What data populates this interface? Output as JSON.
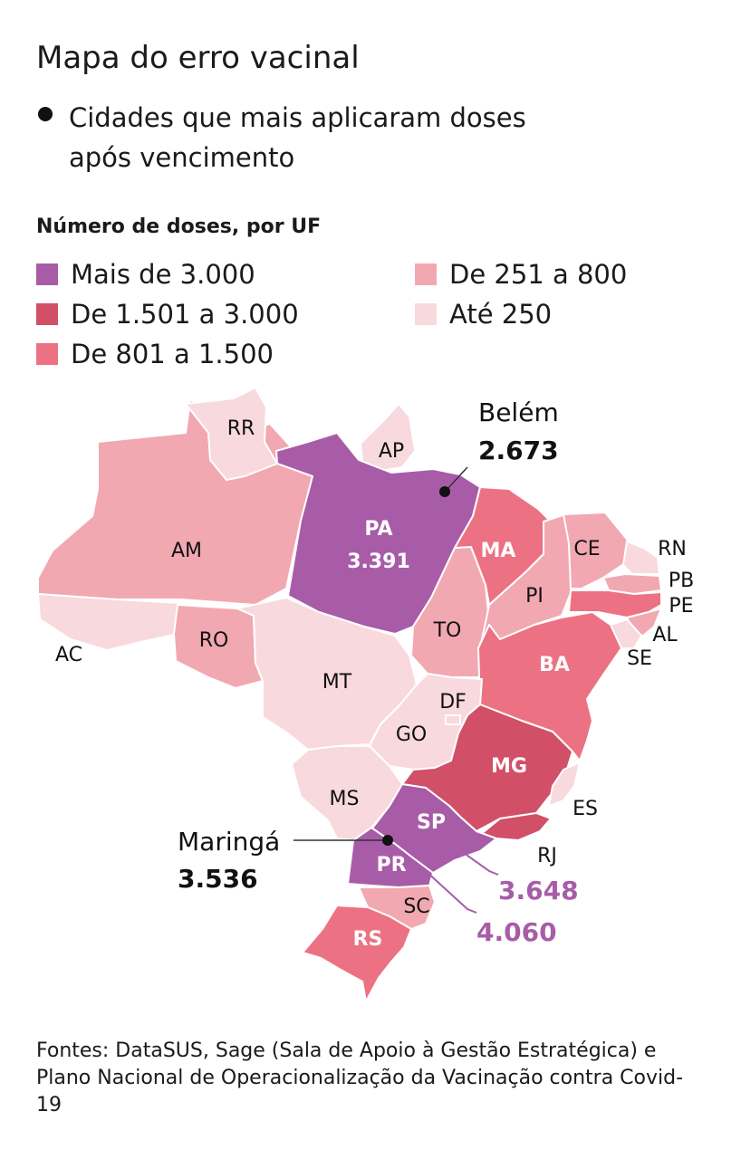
{
  "title": "Mapa do erro vacinal",
  "subtitle": "Cidades que mais aplicaram doses após vencimento",
  "legend": {
    "title": "Número de doses, por UF",
    "items": [
      {
        "label": "Mais de 3.000",
        "color": "#a85ca8"
      },
      {
        "label": "De 1.501 a 3.000",
        "color": "#d24f68"
      },
      {
        "label": "De 801 a 1.500",
        "color": "#ec7283"
      },
      {
        "label": "De 251 a 800",
        "color": "#f2a8b1"
      },
      {
        "label": "Até 250",
        "color": "#f8d9dd"
      }
    ]
  },
  "states": {
    "RR": "RR",
    "AP": "AP",
    "AM": "AM",
    "PA": "PA",
    "PA_value": "3.391",
    "MA": "MA",
    "CE": "CE",
    "RN": "RN",
    "PB": "PB",
    "PE": "PE",
    "AL": "AL",
    "SE": "SE",
    "PI": "PI",
    "TO": "TO",
    "BA": "BA",
    "AC": "AC",
    "RO": "RO",
    "MT": "MT",
    "DF": "DF",
    "GO": "GO",
    "MG": "MG",
    "ES": "ES",
    "MS": "MS",
    "SP": "SP",
    "RJ": "RJ",
    "PR": "PR",
    "SC": "SC",
    "RS": "RS"
  },
  "state_category": {
    "RR": "Até 250",
    "AP": "Até 250",
    "AM": "De 251 a 800",
    "PA": "Mais de 3.000",
    "MA": "De 801 a 1.500",
    "CE": "De 251 a 800",
    "RN": "Até 250",
    "PB": "De 251 a 800",
    "PE": "De 801 a 1.500",
    "AL": "De 251 a 800",
    "SE": "Até 250",
    "PI": "De 251 a 800",
    "TO": "De 251 a 800",
    "BA": "De 801 a 1.500",
    "AC": "Até 250",
    "RO": "De 251 a 800",
    "MT": "Até 250",
    "DF": "Até 250",
    "GO": "Até 250",
    "MG": "De 1.501 a 3.000",
    "ES": "Até 250",
    "MS": "Até 250",
    "SP": "Mais de 3.000",
    "RJ": "De 1.501 a 3.000",
    "PR": "Mais de 3.000",
    "SC": "De 251 a 800",
    "RS": "De 801 a 1.500"
  },
  "cities": {
    "belem": {
      "name": "Belém",
      "value": "2.673"
    },
    "maringa": {
      "name": "Maringá",
      "value": "3.536"
    }
  },
  "callouts": {
    "sp_value": "3.648",
    "pr_value": "4.060",
    "color": "#a85ca8"
  },
  "source": "Fontes: DataSUS, Sage (Sala de Apoio à Gestão Estratégica) e Plano Nacional de Operacionalização da Vacinação contra Covid-19"
}
